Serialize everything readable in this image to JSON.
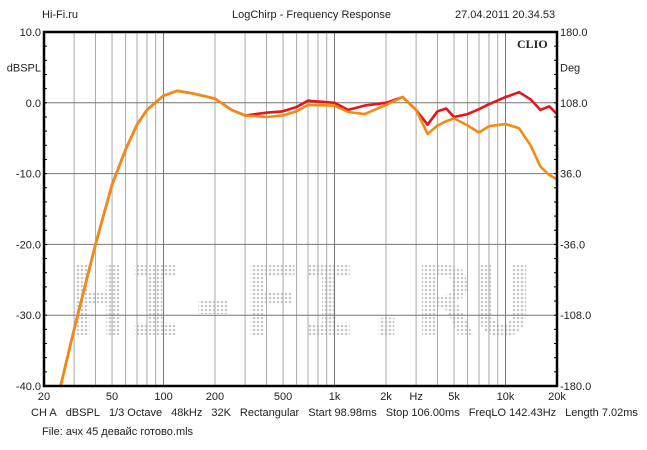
{
  "header": {
    "left": "Hi-Fi.ru",
    "title": "LogChirp - Frequency Response",
    "timestamp": "27.04.2011 20.34.53"
  },
  "brand": "CLIO",
  "watermark": "Hi-Fi.ru",
  "footer": {
    "params": [
      "CH A",
      "dBSPL",
      "1/3 Octave",
      "48kHz",
      "32K",
      "Rectangular",
      "Start 98.98ms",
      "Stop 106.00ms",
      "FreqLO 142.43Hz",
      "Length 7.02ms"
    ],
    "file": "File: ачх 45 девайс готово.mls"
  },
  "chart_data": {
    "type": "line",
    "title": "LogChirp - Frequency Response",
    "xlabel": "Hz",
    "ylabel": "dBSPL",
    "y2label": "Deg",
    "xscale": "log",
    "xlim": [
      20,
      20000
    ],
    "ylim": [
      -40,
      10
    ],
    "y2lim": [
      -180,
      180
    ],
    "grid": true,
    "x_ticks": [
      {
        "v": 20,
        "l": "20"
      },
      {
        "v": 50,
        "l": "50"
      },
      {
        "v": 100,
        "l": "100"
      },
      {
        "v": 200,
        "l": "200"
      },
      {
        "v": 500,
        "l": "500"
      },
      {
        "v": 1000,
        "l": "1k"
      },
      {
        "v": 2000,
        "l": "2k"
      },
      {
        "v": 3000,
        "l": "Hz"
      },
      {
        "v": 5000,
        "l": "5k"
      },
      {
        "v": 10000,
        "l": "10k"
      },
      {
        "v": 20000,
        "l": "20k"
      }
    ],
    "y_ticks": [
      {
        "v": 10,
        "l": "10.0"
      },
      {
        "v": 5,
        "l": "dBSPL"
      },
      {
        "v": 0,
        "l": "0.0"
      },
      {
        "v": -10,
        "l": "-10.0"
      },
      {
        "v": -20,
        "l": "-20.0"
      },
      {
        "v": -30,
        "l": "-30.0"
      },
      {
        "v": -40,
        "l": "-40.0"
      }
    ],
    "y2_ticks": [
      {
        "v": 10,
        "l": "180.0"
      },
      {
        "v": 5,
        "l": "Deg"
      },
      {
        "v": 0,
        "l": "108.0"
      },
      {
        "v": -10,
        "l": "36.0"
      },
      {
        "v": -20,
        "l": "-36.0"
      },
      {
        "v": -30,
        "l": "-108.0"
      },
      {
        "v": -40,
        "l": "-180.0"
      }
    ],
    "series": [
      {
        "name": "red",
        "color": "#e8141c",
        "x": [
          25,
          30,
          40,
          50,
          60,
          70,
          80,
          100,
          120,
          150,
          200,
          250,
          300,
          400,
          500,
          600,
          700,
          1000,
          1200,
          1500,
          2000,
          2500,
          3000,
          3500,
          4000,
          4500,
          5000,
          6000,
          7000,
          8000,
          10000,
          12000,
          14000,
          16000,
          18000,
          20000
        ],
        "y": [
          -40,
          -32,
          -20,
          -11.6,
          -6.6,
          -3.1,
          -1,
          1,
          1.7,
          1.3,
          0.6,
          -1,
          -1.8,
          -1.4,
          -1.2,
          -0.6,
          0.3,
          0,
          -1,
          -0.4,
          0,
          0.8,
          -1,
          -3.1,
          -1.2,
          -0.8,
          -2,
          -1.6,
          -0.9,
          -0.2,
          0.8,
          1.5,
          0.5,
          -1,
          -0.5,
          -1.6
        ]
      },
      {
        "name": "orange",
        "color": "#f58a12",
        "x": [
          25,
          30,
          40,
          50,
          60,
          70,
          80,
          100,
          120,
          150,
          200,
          250,
          300,
          400,
          500,
          600,
          700,
          1000,
          1200,
          1500,
          2000,
          2500,
          3000,
          3500,
          4000,
          4500,
          5000,
          6000,
          7000,
          8000,
          10000,
          12000,
          14000,
          16000,
          18000,
          20000
        ],
        "y": [
          -40,
          -32,
          -20,
          -11.6,
          -6.6,
          -3.1,
          -1,
          1,
          1.7,
          1.3,
          0.6,
          -1,
          -1.8,
          -2,
          -1.8,
          -1.2,
          -0.3,
          -0.4,
          -1.3,
          -1.6,
          -0.3,
          0.8,
          -1,
          -4.4,
          -3.2,
          -2.6,
          -2.2,
          -3.2,
          -4.2,
          -3.3,
          -3,
          -3.6,
          -6,
          -9,
          -10.2,
          -10.8
        ]
      }
    ]
  }
}
